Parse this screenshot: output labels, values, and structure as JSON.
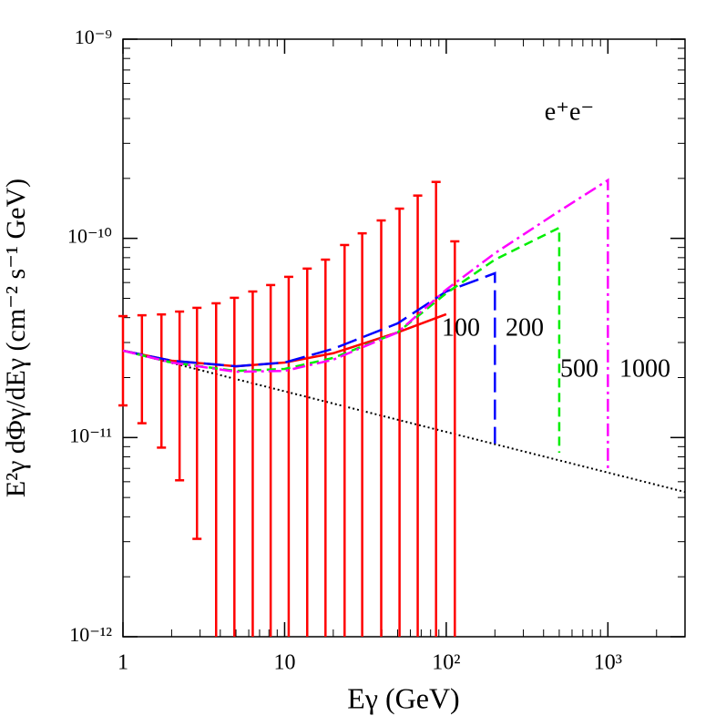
{
  "chart_data": {
    "type": "line",
    "xlabel": "Eγ (GeV)",
    "ylabel": "E²γ dΦγ/dEγ (cm⁻² s⁻¹ GeV)",
    "annotation": "e⁺e⁻",
    "log_x": true,
    "log_y": true,
    "xlim": [
      1,
      3000
    ],
    "ylim": [
      1e-12,
      1e-09
    ],
    "xticks": [
      1,
      10,
      {
        "value": 100,
        "label": "10²"
      },
      {
        "value": 1000,
        "label": "10³"
      }
    ],
    "yticks": [
      {
        "value": 1e-12,
        "label": "10⁻¹²"
      },
      {
        "value": 1e-11,
        "label": "10⁻¹¹"
      },
      {
        "value": 1e-10,
        "label": "10⁻¹⁰"
      },
      {
        "value": 1e-09,
        "label": "10⁻⁹"
      }
    ],
    "error_bars": {
      "color": "#ff0000",
      "x": [
        1,
        1.31,
        1.73,
        2.24,
        2.87,
        3.77,
        4.89,
        6.35,
        8.2,
        10.6,
        13.8,
        17.9,
        23.5,
        30.2,
        39.6,
        51.4,
        66.6,
        86.5,
        113
      ],
      "upper": [
        4.07e-11,
        4.11e-11,
        4.15e-11,
        4.29e-11,
        4.48e-11,
        4.72e-11,
        5.03e-11,
        5.41e-11,
        5.83e-11,
        6.41e-11,
        7.05e-11,
        7.82e-11,
        9.26e-11,
        1.06e-10,
        1.23e-10,
        1.41e-10,
        1.64e-10,
        1.92e-10,
        9.66e-11
      ],
      "lower": [
        1.45e-11,
        1.18e-11,
        8.9e-12,
        6.1e-12,
        3.1e-12,
        null,
        null,
        null,
        null,
        null,
        null,
        null,
        null,
        null,
        null,
        null,
        null,
        null,
        null
      ]
    },
    "background": {
      "color": "#000000",
      "style": "dotted",
      "x": [
        1,
        3000
      ],
      "values": [
        2.73e-11,
        5.33e-12
      ]
    },
    "series": [
      {
        "label": "100",
        "color": "#ff0000",
        "style": "solid",
        "x": [
          1,
          2,
          5,
          10,
          20,
          50,
          100
        ],
        "values": [
          2.73e-11,
          2.43e-11,
          2.28e-11,
          2.38e-11,
          2.65e-11,
          3.37e-11,
          4.16e-11
        ]
      },
      {
        "label": "200",
        "color": "#0000ff",
        "style": "long-dash",
        "x": [
          1,
          2,
          5,
          10,
          20,
          50,
          100,
          200,
          200
        ],
        "values": [
          2.73e-11,
          2.43e-11,
          2.28e-11,
          2.38e-11,
          2.79e-11,
          3.74e-11,
          5.41e-11,
          6.68e-11,
          9.33e-12
        ]
      },
      {
        "label": "500",
        "color": "#00ee00",
        "style": "dash",
        "x": [
          1,
          2,
          5,
          10,
          20,
          50,
          100,
          200,
          500,
          500
        ],
        "values": [
          2.73e-11,
          2.38e-11,
          2.16e-11,
          2.21e-11,
          2.51e-11,
          3.37e-11,
          5.3e-11,
          7.82e-11,
          1.13e-10,
          8.39e-12
        ]
      },
      {
        "label": "1000",
        "color": "#ff00ff",
        "style": "dash-dot",
        "x": [
          1,
          2,
          5,
          10,
          20,
          50,
          100,
          200,
          500,
          1000,
          1000
        ],
        "values": [
          2.73e-11,
          2.38e-11,
          2.14e-11,
          2.16e-11,
          2.46e-11,
          3.37e-11,
          5.53e-11,
          8.42e-11,
          1.37e-10,
          1.96e-10,
          6.73e-12
        ]
      }
    ]
  }
}
